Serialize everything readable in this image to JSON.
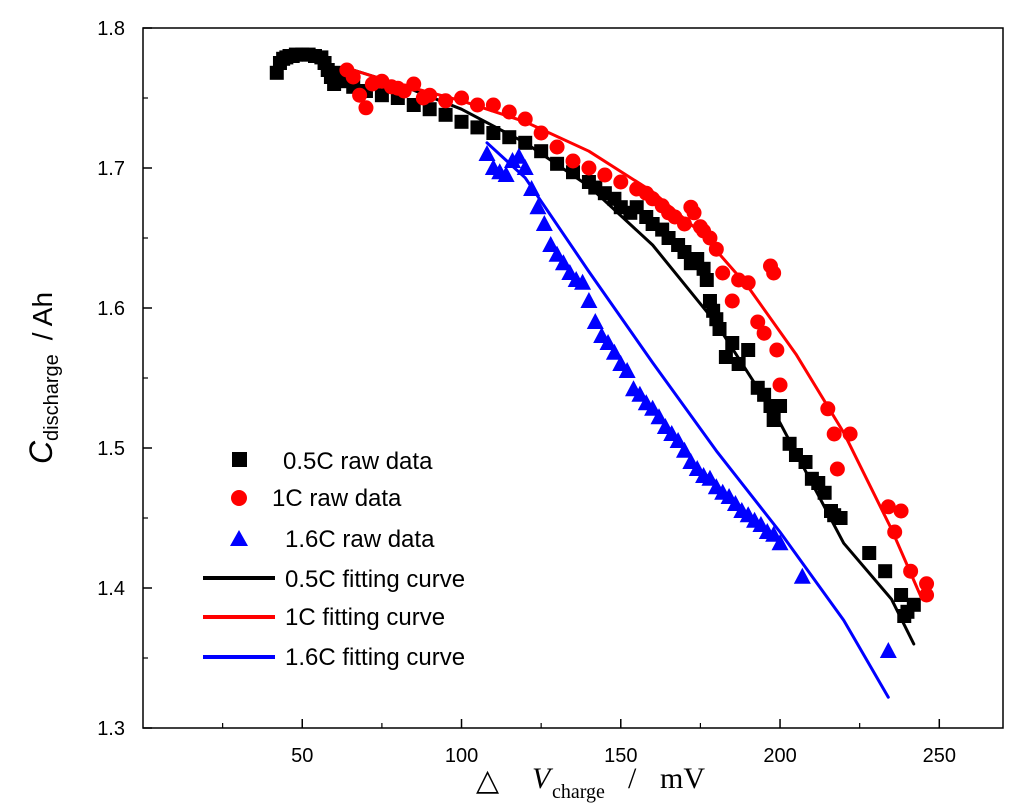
{
  "chart_data": {
    "type": "scatter",
    "title": "",
    "xlabel": {
      "symbol": "△",
      "var": "V",
      "sub": "charge",
      "sep": "/",
      "unit": "mV"
    },
    "ylabel": {
      "var": "C",
      "sub": "discharge",
      "unit": "/ Ah"
    },
    "xlim": [
      0,
      270
    ],
    "ylim": [
      1.3,
      1.8
    ],
    "xticks": [
      50,
      100,
      150,
      200,
      250
    ],
    "yticks": [
      1.3,
      1.4,
      1.5,
      1.6,
      1.7,
      1.8
    ],
    "xtick_labels": [
      "50",
      "100",
      "150",
      "200",
      "250"
    ],
    "ytick_labels": [
      "1.3",
      "1.4",
      "1.5",
      "1.6",
      "1.7",
      "1.8"
    ],
    "legend_position": "lower-left",
    "colors": {
      "black": "#000000",
      "red": "#ff0000",
      "blue": "#0000ff"
    },
    "series": [
      {
        "name": "0.5C raw data",
        "kind": "scatter",
        "marker": "square",
        "color": "#000000",
        "x": [
          42,
          43,
          44,
          45,
          46,
          47,
          48,
          50,
          52,
          54,
          56,
          57,
          58,
          59,
          60,
          61,
          62,
          64,
          66,
          70,
          75,
          80,
          85,
          90,
          95,
          100,
          105,
          110,
          115,
          120,
          125,
          130,
          135,
          140,
          142,
          145,
          148,
          150,
          153,
          155,
          158,
          160,
          163,
          165,
          168,
          170,
          172,
          174,
          176,
          177,
          178,
          179,
          180,
          181,
          183,
          185,
          187,
          190,
          193,
          195,
          197,
          198,
          200,
          203,
          205,
          208,
          210,
          212,
          214,
          216,
          217,
          219,
          228,
          233,
          238,
          239,
          240,
          242
        ],
        "y": [
          1.768,
          1.775,
          1.778,
          1.779,
          1.78,
          1.78,
          1.781,
          1.781,
          1.781,
          1.78,
          1.779,
          1.775,
          1.77,
          1.765,
          1.76,
          1.768,
          1.762,
          1.763,
          1.758,
          1.755,
          1.752,
          1.75,
          1.745,
          1.742,
          1.738,
          1.733,
          1.729,
          1.725,
          1.722,
          1.718,
          1.712,
          1.703,
          1.697,
          1.69,
          1.686,
          1.682,
          1.678,
          1.672,
          1.668,
          1.672,
          1.665,
          1.66,
          1.656,
          1.65,
          1.645,
          1.64,
          1.632,
          1.635,
          1.628,
          1.62,
          1.605,
          1.598,
          1.592,
          1.585,
          1.565,
          1.575,
          1.56,
          1.57,
          1.543,
          1.538,
          1.53,
          1.52,
          1.53,
          1.503,
          1.495,
          1.49,
          1.478,
          1.475,
          1.468,
          1.455,
          1.452,
          1.45,
          1.425,
          1.412,
          1.395,
          1.38,
          1.383,
          1.388
        ]
      },
      {
        "name": "1C raw data",
        "kind": "scatter",
        "marker": "circle",
        "color": "#ff0000",
        "x": [
          64,
          66,
          68,
          70,
          72,
          75,
          78,
          80,
          82,
          85,
          88,
          90,
          95,
          100,
          105,
          110,
          115,
          120,
          125,
          130,
          135,
          140,
          145,
          150,
          155,
          158,
          160,
          163,
          165,
          167,
          170,
          172,
          173,
          175,
          176,
          178,
          180,
          182,
          185,
          187,
          190,
          193,
          195,
          197,
          198,
          199,
          200,
          215,
          217,
          218,
          222,
          234,
          236,
          238,
          241,
          246,
          246
        ],
        "y": [
          1.77,
          1.765,
          1.752,
          1.743,
          1.76,
          1.762,
          1.758,
          1.757,
          1.755,
          1.76,
          1.75,
          1.752,
          1.748,
          1.75,
          1.745,
          1.745,
          1.74,
          1.735,
          1.725,
          1.715,
          1.705,
          1.7,
          1.695,
          1.69,
          1.685,
          1.682,
          1.678,
          1.673,
          1.668,
          1.665,
          1.66,
          1.672,
          1.668,
          1.658,
          1.655,
          1.65,
          1.642,
          1.625,
          1.605,
          1.62,
          1.618,
          1.59,
          1.582,
          1.63,
          1.625,
          1.57,
          1.545,
          1.528,
          1.51,
          1.485,
          1.51,
          1.458,
          1.44,
          1.455,
          1.412,
          1.403,
          1.395
        ]
      },
      {
        "name": "1.6C raw data",
        "kind": "scatter",
        "marker": "triangle",
        "color": "#0000ff",
        "x": [
          108,
          110,
          112,
          114,
          116,
          118,
          120,
          122,
          124,
          126,
          128,
          130,
          132,
          134,
          136,
          138,
          140,
          142,
          144,
          146,
          148,
          150,
          152,
          154,
          156,
          158,
          160,
          162,
          164,
          166,
          168,
          170,
          172,
          174,
          176,
          178,
          180,
          182,
          184,
          186,
          188,
          190,
          192,
          194,
          196,
          198,
          200,
          207,
          234
        ],
        "y": [
          1.71,
          1.7,
          1.697,
          1.695,
          1.705,
          1.708,
          1.7,
          1.685,
          1.672,
          1.66,
          1.645,
          1.638,
          1.632,
          1.625,
          1.62,
          1.618,
          1.605,
          1.59,
          1.58,
          1.575,
          1.568,
          1.56,
          1.555,
          1.542,
          1.538,
          1.532,
          1.528,
          1.522,
          1.515,
          1.51,
          1.505,
          1.498,
          1.49,
          1.485,
          1.48,
          1.478,
          1.472,
          1.468,
          1.465,
          1.46,
          1.455,
          1.452,
          1.448,
          1.445,
          1.44,
          1.438,
          1.432,
          1.408,
          1.355
        ]
      },
      {
        "name": "0.5C fitting curve",
        "kind": "line",
        "color": "#000000",
        "x": [
          66,
          80,
          100,
          120,
          140,
          160,
          180,
          200,
          220,
          235,
          242
        ],
        "y": [
          1.77,
          1.76,
          1.742,
          1.718,
          1.687,
          1.645,
          1.589,
          1.518,
          1.432,
          1.392,
          1.36
        ]
      },
      {
        "name": "1C fitting curve",
        "kind": "line",
        "color": "#ff0000",
        "x": [
          66,
          80,
          100,
          120,
          140,
          160,
          175,
          190,
          205,
          220,
          235,
          244
        ],
        "y": [
          1.77,
          1.76,
          1.748,
          1.733,
          1.712,
          1.683,
          1.654,
          1.615,
          1.567,
          1.511,
          1.442,
          1.395
        ]
      },
      {
        "name": "1.6C fitting curve",
        "kind": "line",
        "color": "#0000ff",
        "x": [
          108,
          120,
          140,
          160,
          180,
          200,
          220,
          234
        ],
        "y": [
          1.718,
          1.693,
          1.626,
          1.561,
          1.498,
          1.44,
          1.377,
          1.322
        ]
      }
    ]
  }
}
